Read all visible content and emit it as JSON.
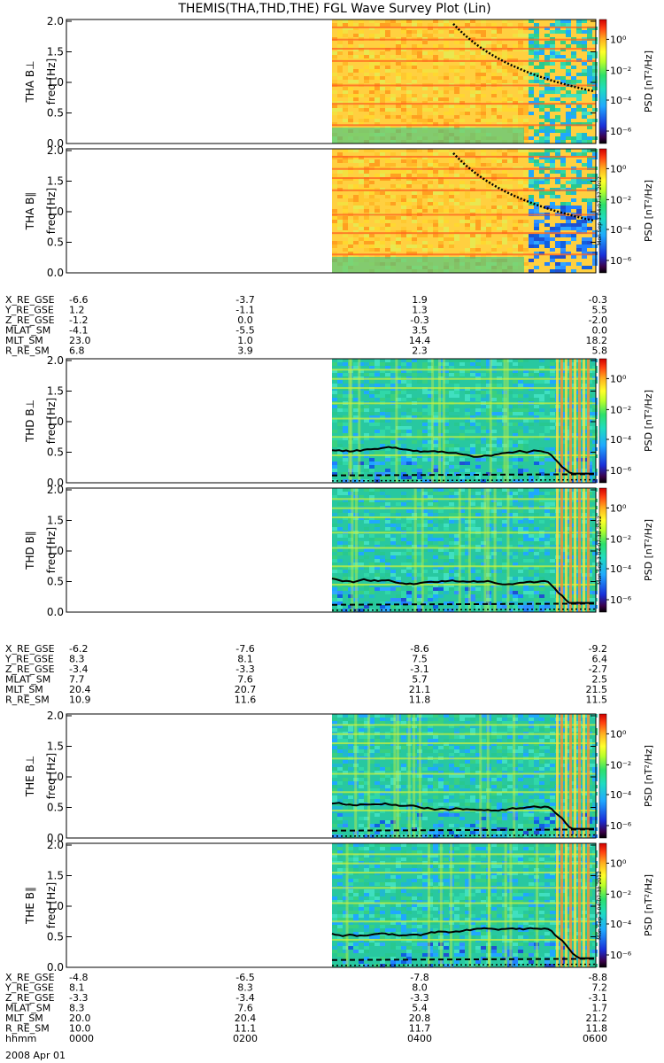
{
  "title": "THEMIS(THA,THD,THE) FGL Wave Survey Plot (Lin)",
  "date_label": "2008 Apr 01",
  "colorbar": {
    "label": "PSD [nT²/Hz]",
    "ticks": [
      "10⁰",
      "10⁻²",
      "10⁻⁴",
      "10⁻⁶"
    ],
    "stamps": [
      "Mon Sep 3 04:07:37 2012",
      "Mon Sep 3 04:07:38 2012",
      "Mon Sep 3 04:07:38 2012"
    ]
  },
  "freq_axis": {
    "label": "freq [Hz]",
    "ticks": [
      "2.0",
      "1.5",
      "1.0",
      "0.5",
      "0.0"
    ]
  },
  "probes": [
    {
      "name": "THA",
      "panels": [
        {
          "label": "THA B⊥"
        },
        {
          "label": "THA B∥"
        }
      ],
      "ephemeris": [
        {
          "name": "X_RE_GSE",
          "values": [
            "-6.6",
            "-3.7",
            "1.9",
            "-0.3"
          ]
        },
        {
          "name": "Y_RE_GSE",
          "values": [
            "1.2",
            "-1.1",
            "1.3",
            "5.5"
          ]
        },
        {
          "name": "Z_RE_GSE",
          "values": [
            "-1.2",
            "0.0",
            "-0.3",
            "-2.0"
          ]
        },
        {
          "name": "MLAT_SM",
          "values": [
            "-4.1",
            "-5.5",
            "3.5",
            "0.0"
          ]
        },
        {
          "name": "MLT_SM",
          "values": [
            "23.0",
            "1.0",
            "14.4",
            "18.2"
          ]
        },
        {
          "name": "R_RE_SM",
          "values": [
            "6.8",
            "3.9",
            "2.3",
            "5.8"
          ]
        }
      ]
    },
    {
      "name": "THD",
      "panels": [
        {
          "label": "THD B⊥"
        },
        {
          "label": "THD B∥"
        }
      ],
      "ephemeris": [
        {
          "name": "X_RE_GSE",
          "values": [
            "-6.2",
            "-7.6",
            "-8.6",
            "-9.2"
          ]
        },
        {
          "name": "Y_RE_GSE",
          "values": [
            "8.3",
            "8.1",
            "7.5",
            "6.4"
          ]
        },
        {
          "name": "Z_RE_GSE",
          "values": [
            "-3.4",
            "-3.3",
            "-3.1",
            "-2.7"
          ]
        },
        {
          "name": "MLAT_SM",
          "values": [
            "7.7",
            "7.6",
            "5.7",
            "2.5"
          ]
        },
        {
          "name": "MLT_SM",
          "values": [
            "20.4",
            "20.7",
            "21.1",
            "21.5"
          ]
        },
        {
          "name": "R_RE_SM",
          "values": [
            "10.9",
            "11.6",
            "11.8",
            "11.5"
          ]
        }
      ]
    },
    {
      "name": "THE",
      "panels": [
        {
          "label": "THE B⊥"
        },
        {
          "label": "THE B∥"
        }
      ],
      "ephemeris": [
        {
          "name": "X_RE_GSE",
          "values": [
            "-4.8",
            "-6.5",
            "-7.8",
            "-8.8"
          ]
        },
        {
          "name": "Y_RE_GSE",
          "values": [
            "8.1",
            "8.3",
            "8.0",
            "7.2"
          ]
        },
        {
          "name": "Z_RE_GSE",
          "values": [
            "-3.3",
            "-3.4",
            "-3.3",
            "-3.1"
          ]
        },
        {
          "name": "MLAT_SM",
          "values": [
            "8.3",
            "7.6",
            "5.4",
            "1.7"
          ]
        },
        {
          "name": "MLT_SM",
          "values": [
            "20.0",
            "20.4",
            "20.8",
            "21.2"
          ]
        },
        {
          "name": "R_RE_SM",
          "values": [
            "10.0",
            "11.1",
            "11.7",
            "11.8"
          ]
        },
        {
          "name": "hhmm",
          "values": [
            "0000",
            "0200",
            "0400",
            "0600"
          ]
        }
      ]
    }
  ],
  "chart_data": {
    "type": "heatmap",
    "title": "THEMIS(THA,THD,THE) FGL Wave Survey Plot (Lin)",
    "ylabel": "freq [Hz]",
    "ylim": [
      0,
      2.0
    ],
    "y_ticks": [
      0.0,
      0.5,
      1.0,
      1.5,
      2.0
    ],
    "x_ticks": [
      "0000",
      "0200",
      "0400",
      "0600"
    ],
    "color_scale": "log",
    "color_ticks": [
      "10⁻⁶",
      "10⁻⁴",
      "10⁻²",
      "10⁰"
    ],
    "data_start": "0300"
  }
}
